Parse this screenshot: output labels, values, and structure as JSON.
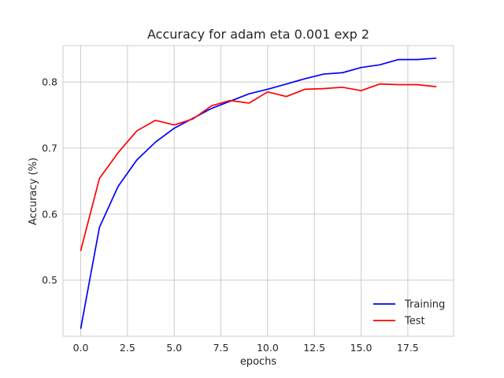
{
  "chart_data": {
    "type": "line",
    "title": "Accuracy for adam eta 0.001 exp 2",
    "xlabel": "epochs",
    "ylabel": "Accuracy (%)",
    "xlim": [
      -0.95,
      19.95
    ],
    "ylim": [
      0.415,
      0.855
    ],
    "grid": true,
    "legend_position": "bottom-right",
    "x": [
      0,
      1,
      2,
      3,
      4,
      5,
      6,
      7,
      8,
      9,
      10,
      11,
      12,
      13,
      14,
      15,
      16,
      17,
      18,
      19
    ],
    "x_ticks": [
      0,
      2.5,
      5,
      7.5,
      10,
      12.5,
      15,
      17.5
    ],
    "x_tick_labels": [
      "0.0",
      "2.5",
      "5.0",
      "7.5",
      "10.0",
      "12.5",
      "15.0",
      "17.5"
    ],
    "y_ticks": [
      0.5,
      0.6,
      0.7,
      0.8
    ],
    "y_tick_labels": [
      "0.5",
      "0.6",
      "0.7",
      "0.8"
    ],
    "series": [
      {
        "name": "Training",
        "color": "#0000ff",
        "values": [
          0.427,
          0.58,
          0.642,
          0.682,
          0.709,
          0.73,
          0.745,
          0.76,
          0.771,
          0.782,
          0.789,
          0.797,
          0.805,
          0.812,
          0.814,
          0.822,
          0.826,
          0.834,
          0.834,
          0.836
        ]
      },
      {
        "name": "Test",
        "color": "#ff0000",
        "values": [
          0.545,
          0.654,
          0.693,
          0.726,
          0.742,
          0.735,
          0.744,
          0.764,
          0.772,
          0.768,
          0.785,
          0.778,
          0.789,
          0.79,
          0.792,
          0.787,
          0.797,
          0.796,
          0.796,
          0.793
        ]
      }
    ]
  }
}
